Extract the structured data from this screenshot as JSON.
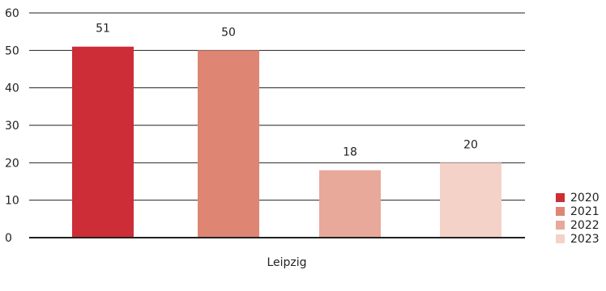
{
  "chart_data": {
    "type": "bar",
    "categories": [
      "Leipzig"
    ],
    "series": [
      {
        "name": "2020",
        "values": [
          51
        ],
        "color": "#cc2d37"
      },
      {
        "name": "2021",
        "values": [
          50
        ],
        "color": "#de8574"
      },
      {
        "name": "2022",
        "values": [
          18
        ],
        "color": "#e8a89a"
      },
      {
        "name": "2023",
        "values": [
          20
        ],
        "color": "#f4d2c7"
      }
    ],
    "title": "",
    "xlabel": "",
    "ylabel": "",
    "ylim": [
      0,
      60
    ],
    "yticks": [
      0,
      10,
      20,
      30,
      40,
      50,
      60
    ],
    "grid": true,
    "legend": "right",
    "data_labels": true
  }
}
